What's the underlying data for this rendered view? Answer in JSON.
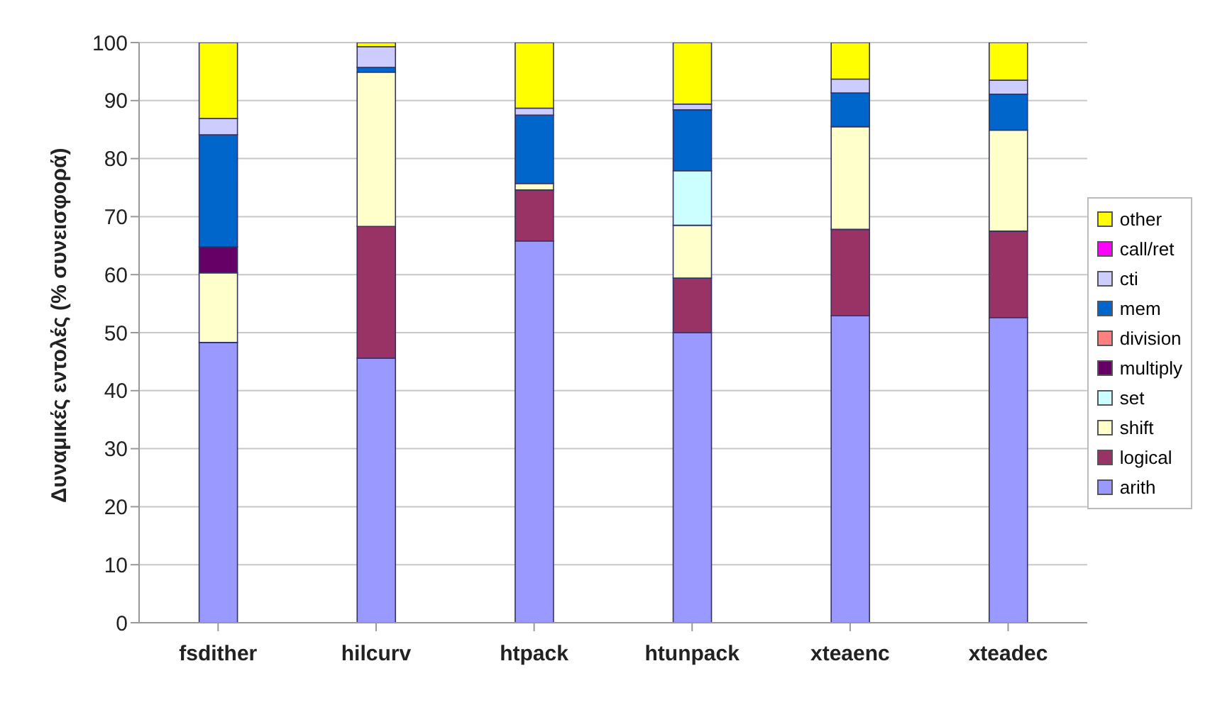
{
  "chart_data": {
    "type": "bar",
    "stacked": true,
    "ylabel": "Δυναμικές εντολές (% συνεισφορά)",
    "categories": [
      "fsdither",
      "hilcurv",
      "htpack",
      "htunpack",
      "xteaenc",
      "xteadec"
    ],
    "ylim": [
      0,
      100
    ],
    "yticks": [
      0,
      10,
      20,
      30,
      40,
      50,
      60,
      70,
      80,
      90,
      100
    ],
    "grid": "y",
    "legend": "right",
    "series": [
      {
        "name": "arith",
        "color": "#9999ff",
        "values": [
          48.3,
          45.6,
          65.8,
          50,
          52.9,
          52.6
        ]
      },
      {
        "name": "logical",
        "color": "#993366",
        "values": [
          0,
          22.7,
          8.8,
          9.4,
          14.9,
          14.9
        ]
      },
      {
        "name": "shift",
        "color": "#ffffcc",
        "values": [
          12,
          26.6,
          1.1,
          9.1,
          17.7,
          17.4
        ]
      },
      {
        "name": "set",
        "color": "#ccffff",
        "values": [
          0,
          0,
          0,
          9.4,
          0,
          0
        ]
      },
      {
        "name": "multiply",
        "color": "#660066",
        "values": [
          4.5,
          0,
          0,
          0,
          0,
          0
        ]
      },
      {
        "name": "division",
        "color": "#ff8080",
        "values": [
          0,
          0,
          0,
          0,
          0,
          0
        ]
      },
      {
        "name": "mem",
        "color": "#0066cc",
        "values": [
          19.3,
          0.8,
          11.8,
          10.5,
          5.8,
          6.2
        ]
      },
      {
        "name": "cti",
        "color": "#ccccff",
        "values": [
          2.8,
          3.6,
          1.2,
          1,
          2.4,
          2.4
        ]
      },
      {
        "name": "call/ret",
        "color": "#ff00ff",
        "values": [
          0,
          0,
          0,
          0,
          0,
          0
        ]
      },
      {
        "name": "other",
        "color": "#ffff00",
        "values": [
          13.1,
          0.7,
          11.3,
          10.6,
          6.3,
          6.5
        ]
      }
    ]
  }
}
